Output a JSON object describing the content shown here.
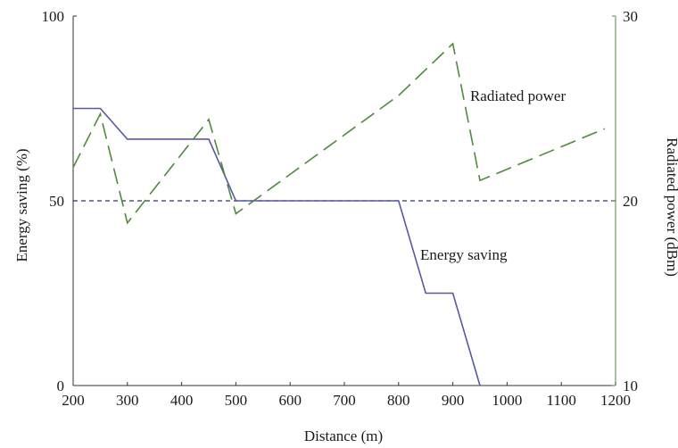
{
  "chart_data": {
    "type": "line",
    "xlabel": "Distance (m)",
    "ylabel_left": "Energy saving (%)",
    "ylabel_right": "Radiated power (dBm)",
    "xlim": [
      200,
      1200
    ],
    "ylim_left": [
      0,
      100
    ],
    "ylim_right": [
      10,
      30
    ],
    "x_ticks": [
      "200",
      "300",
      "400",
      "500",
      "600",
      "700",
      "800",
      "900",
      "1000",
      "1100",
      "1200"
    ],
    "y_left_ticks": [
      "0",
      "50",
      "100"
    ],
    "y_right_ticks": [
      "10",
      "20",
      "30"
    ],
    "grid": false,
    "series": [
      {
        "name": "Energy saving",
        "axis": "left",
        "style": "solid",
        "color": "#5858a8",
        "x": [
          200,
          250,
          300,
          350,
          450,
          500,
          550,
          600,
          650,
          700,
          750,
          800,
          850,
          900,
          950
        ],
        "y": [
          75,
          75,
          66.7,
          66.7,
          66.7,
          50,
          50,
          50,
          50,
          50,
          50,
          50,
          25,
          25,
          0
        ]
      },
      {
        "name": "Radiated power",
        "axis": "right",
        "style": "dashed",
        "color": "#4e8a3e",
        "x": [
          200,
          250,
          300,
          450,
          500,
          800,
          900,
          950,
          1180
        ],
        "y": [
          21.8,
          24.7,
          18.8,
          24.4,
          19.3,
          25.7,
          28.5,
          21.1,
          23.9
        ]
      }
    ],
    "reference_line": {
      "axis": "left",
      "y": 50,
      "style": "dashed",
      "color": "#333366"
    },
    "annotations": [
      {
        "text": "Radiated power",
        "x": 1020,
        "y_left": 77
      },
      {
        "text": "Energy saving",
        "x": 920,
        "y_left": 34
      }
    ]
  }
}
